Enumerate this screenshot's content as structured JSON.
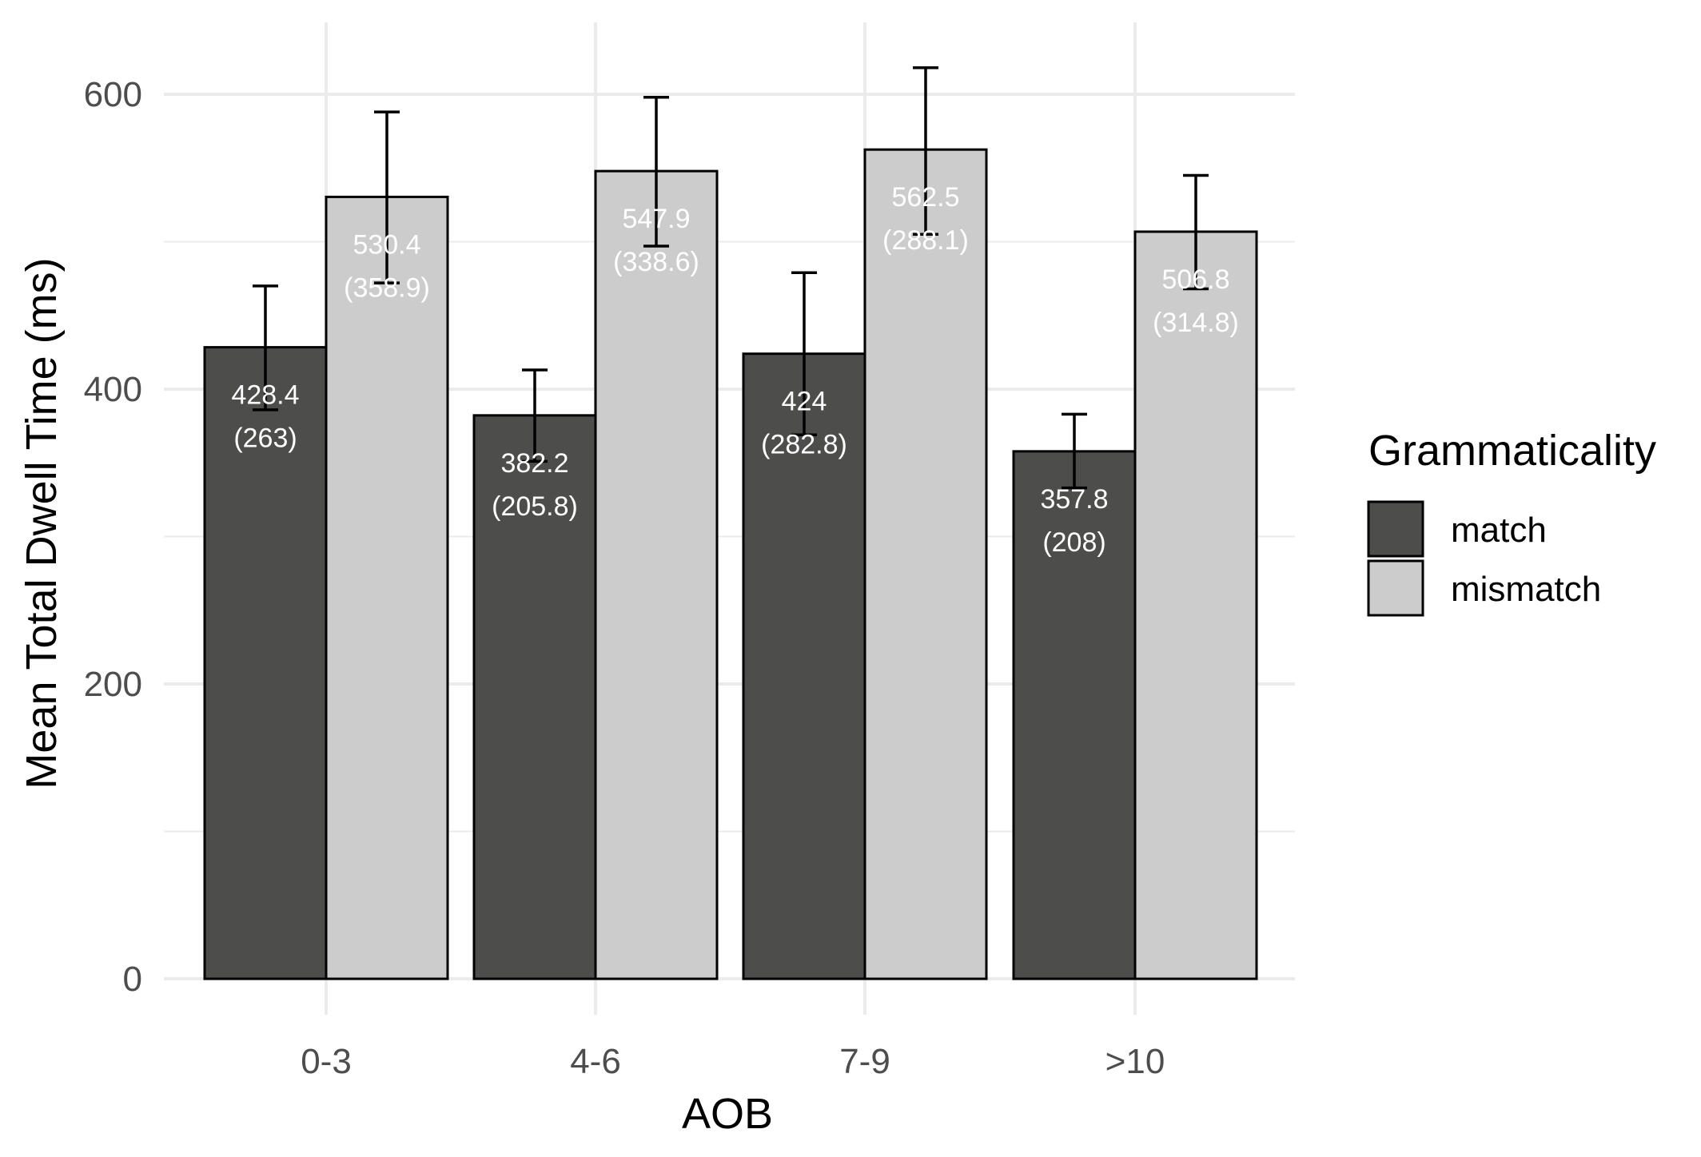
{
  "chart_data": {
    "type": "bar",
    "title": "",
    "xlabel": "AOB",
    "ylabel": "Mean Total Dwell Time (ms)",
    "categories": [
      "0-3",
      "4-6",
      "7-9",
      ">10"
    ],
    "ylim": [
      0,
      650
    ],
    "yticks": [
      0,
      200,
      400,
      600
    ],
    "grid": true,
    "legend": {
      "title": "Grammaticality",
      "placement": "right"
    },
    "series": [
      {
        "name": "match",
        "color": "#4d4d4c",
        "values": [
          428.4,
          382.2,
          424,
          357.8
        ],
        "labels": [
          [
            "428.4",
            "(263)"
          ],
          [
            "382.2",
            "(205.8)"
          ],
          [
            "424",
            "(282.8)"
          ],
          [
            "357.8",
            "(208)"
          ]
        ],
        "error_low": [
          386,
          351,
          369,
          333
        ],
        "error_high": [
          470,
          413,
          479,
          383
        ]
      },
      {
        "name": "mismatch",
        "color": "#cccccc",
        "values": [
          530.4,
          547.9,
          562.5,
          506.8
        ],
        "labels": [
          [
            "530.4",
            "(358.9)"
          ],
          [
            "547.9",
            "(338.6)"
          ],
          [
            "562.5",
            "(288.1)"
          ],
          [
            "506.8",
            "(314.8)"
          ]
        ],
        "error_low": [
          472,
          497,
          505,
          468
        ],
        "error_high": [
          588,
          598,
          618,
          545
        ]
      }
    ]
  }
}
